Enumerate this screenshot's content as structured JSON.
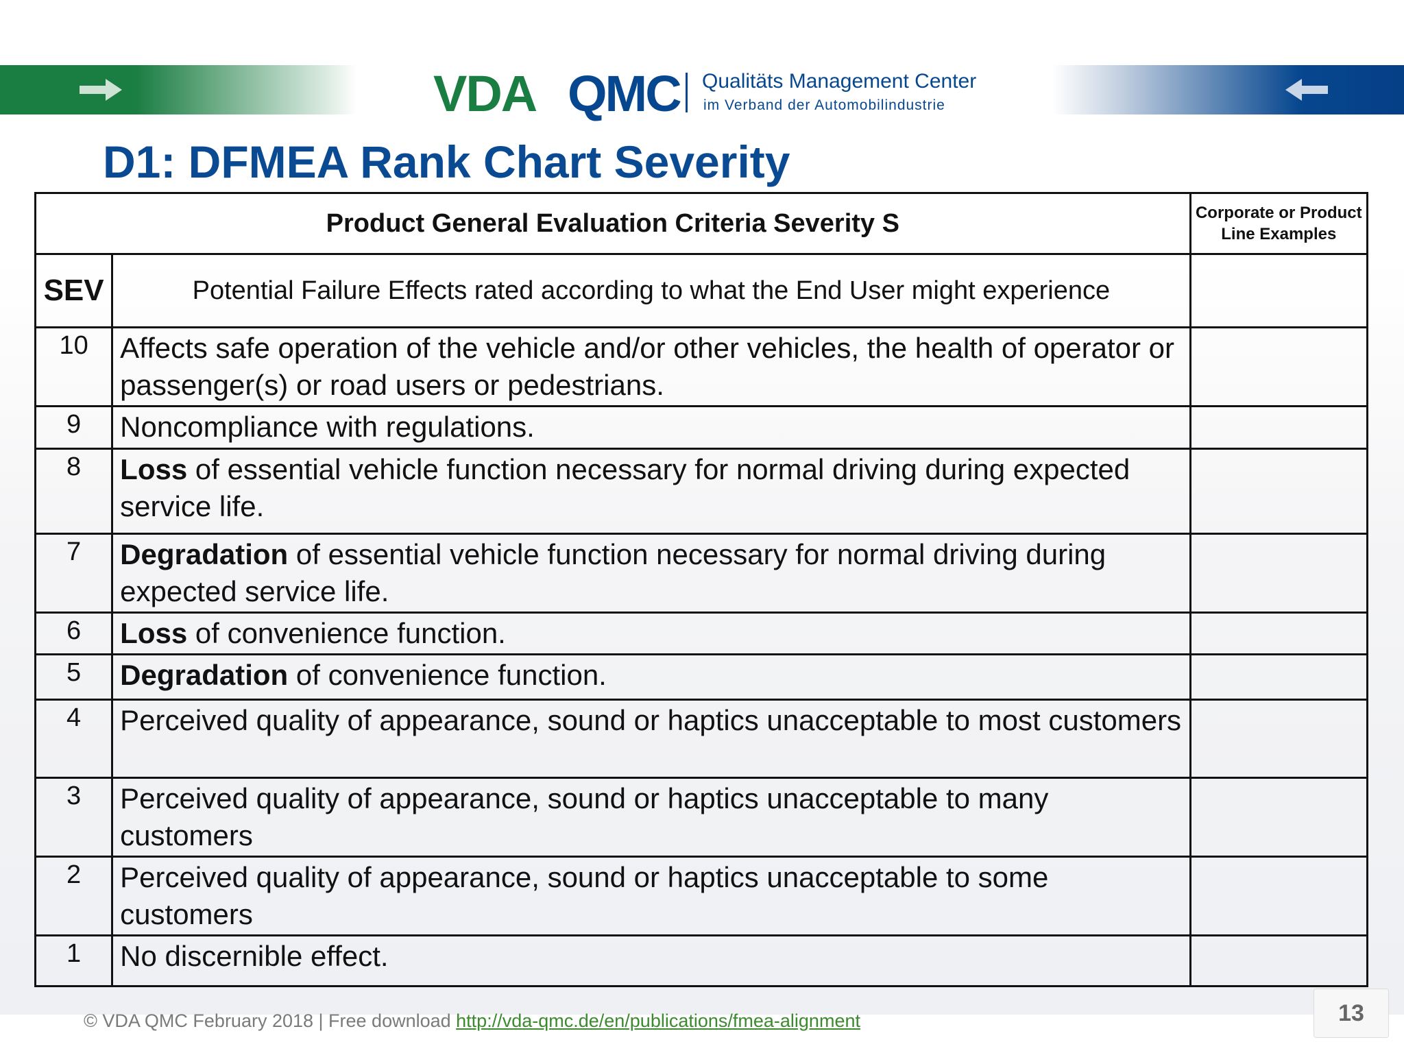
{
  "header": {
    "logo_vda": "VDA",
    "logo_qmc": "QMC",
    "logo_line1": "Qualitäts Management Center",
    "logo_line2": "im Verband der Automobilindustrie",
    "left_arrow_icon": "arrow-right-icon",
    "right_arrow_icon": "arrow-left-icon",
    "colors": {
      "green": "#1a7d42",
      "blue": "#07478f"
    }
  },
  "title": "D1: DFMEA Rank Chart Severity",
  "table": {
    "header_main": "Product General Evaluation Criteria Severity S",
    "header_examples": "Corporate or Product Line Examples",
    "sev_label": "SEV",
    "potential_label": "Potential Failure Effects rated according to what the End User might experience",
    "rows": [
      {
        "sev": "10",
        "bold": "",
        "text": "Affects safe operation of the vehicle and/or other vehicles, the health of operator or passenger(s) or road users or pedestrians."
      },
      {
        "sev": "9",
        "bold": "",
        "text": "Noncompliance with regulations."
      },
      {
        "sev": "8",
        "bold": "Loss",
        "text": " of essential vehicle function necessary for normal driving during expected service life."
      },
      {
        "sev": "7",
        "bold": "Degradation",
        "text": " of essential vehicle function necessary for normal driving during expected service life."
      },
      {
        "sev": "6",
        "bold": "Loss",
        "text": " of convenience function."
      },
      {
        "sev": "5",
        "bold": "Degradation",
        "text": " of convenience function."
      },
      {
        "sev": "4",
        "bold": "",
        "text": "Perceived quality of appearance, sound or haptics unacceptable to most customers"
      },
      {
        "sev": "3",
        "bold": "",
        "text": "Perceived quality of appearance, sound or haptics unacceptable to many customers"
      },
      {
        "sev": "2",
        "bold": "",
        "text": "Perceived quality of appearance, sound or haptics unacceptable to some customers"
      },
      {
        "sev": "1",
        "bold": "",
        "text": "No discernible effect."
      }
    ]
  },
  "footer": {
    "copyright": "© VDA QMC February  2018 | Free download ",
    "link_text": "http://vda-qmc.de/en/publications/fmea-alignment"
  },
  "page_number": "13"
}
